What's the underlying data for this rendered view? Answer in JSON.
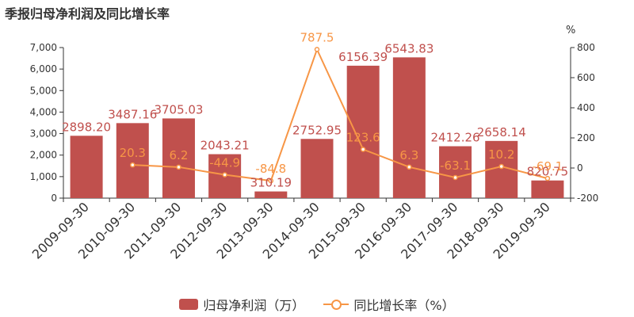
{
  "title": "季报归母净利润及同比增长率",
  "legend": {
    "bar_label": "归母净利润（万）",
    "line_label": "同比增长率（%）"
  },
  "colors": {
    "bar": "#c0504d",
    "line": "#f79646",
    "axis": "#333333"
  },
  "chart_data": {
    "type": "bar",
    "categories": [
      "2009-09-30",
      "2010-09-30",
      "2011-09-30",
      "2012-09-30",
      "2013-09-30",
      "2014-09-30",
      "2015-09-30",
      "2016-09-30",
      "2017-09-30",
      "2018-09-30",
      "2019-09-30"
    ],
    "series": [
      {
        "name": "归母净利润（万）",
        "type": "bar",
        "axis": "left",
        "values": [
          2898.2,
          3487.16,
          3705.03,
          2043.21,
          310.19,
          2752.95,
          6156.39,
          6543.83,
          2412.26,
          2658.14,
          820.75
        ],
        "labels": [
          "2898.20",
          "3487.16",
          "3705.03",
          "2043.21",
          "310.19",
          "2752.95",
          "6156.39",
          "6543.83",
          "2412.26",
          "2658.14",
          "820.75"
        ]
      },
      {
        "name": "同比增长率（%）",
        "type": "line",
        "axis": "right",
        "values": [
          null,
          20.3,
          6.2,
          -44.9,
          -84.8,
          787.5,
          123.6,
          6.3,
          -63.1,
          10.2,
          -69.1
        ],
        "labels": [
          "",
          "20.3",
          "6.2",
          "-44.9",
          "-84.8",
          "787.5",
          "123.6",
          "6.3",
          "-63.1",
          "10.2",
          "-69.1"
        ]
      }
    ],
    "y_left": {
      "range": [
        0,
        7000
      ],
      "ticks": [
        "0",
        "1,000",
        "2,000",
        "3,000",
        "4,000",
        "5,000",
        "6,000",
        "7,000"
      ]
    },
    "y_right": {
      "range": [
        -200,
        800
      ],
      "ticks": [
        "-200",
        "0",
        "200",
        "400",
        "600",
        "800"
      ],
      "unit": "%"
    },
    "grid": false,
    "legend_position": "bottom"
  }
}
